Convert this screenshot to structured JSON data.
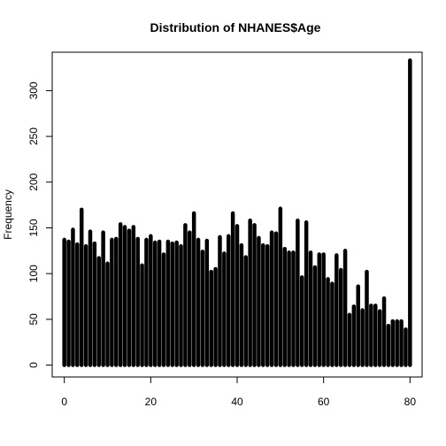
{
  "chart_data": {
    "type": "bar",
    "title": "Distribution of NHANES$Age",
    "xlabel": "",
    "ylabel": "Frequency",
    "x_ticks": [
      0,
      20,
      40,
      60,
      80
    ],
    "y_ticks": [
      0,
      50,
      100,
      150,
      200,
      250,
      300
    ],
    "xlim": [
      -2.8,
      82.8
    ],
    "ylim": [
      -13,
      342
    ],
    "bar_color": "#000000",
    "grid": false,
    "legend": "none",
    "x": [
      0,
      1,
      2,
      3,
      4,
      5,
      6,
      7,
      8,
      9,
      10,
      11,
      12,
      13,
      14,
      15,
      16,
      17,
      18,
      19,
      20,
      21,
      22,
      23,
      24,
      25,
      26,
      27,
      28,
      29,
      30,
      31,
      32,
      33,
      34,
      35,
      36,
      37,
      38,
      39,
      40,
      41,
      42,
      43,
      44,
      45,
      46,
      47,
      48,
      49,
      50,
      51,
      52,
      53,
      54,
      55,
      56,
      57,
      58,
      59,
      60,
      61,
      62,
      63,
      64,
      65,
      66,
      67,
      68,
      69,
      70,
      71,
      72,
      73,
      74,
      75,
      76,
      77,
      78,
      79,
      80
    ],
    "values": [
      137,
      135,
      148,
      132,
      170,
      130,
      146,
      133,
      117,
      145,
      111,
      137,
      138,
      154,
      151,
      147,
      151,
      138,
      109,
      137,
      141,
      134,
      135,
      121,
      135,
      133,
      134,
      130,
      153,
      145,
      166,
      137,
      124,
      136,
      102,
      105,
      140,
      122,
      141,
      166,
      152,
      131,
      118,
      158,
      153,
      139,
      131,
      130,
      145,
      144,
      171,
      127,
      123,
      123,
      158,
      96,
      156,
      123,
      107,
      121,
      121,
      94,
      89,
      120,
      104,
      125,
      55,
      64,
      86,
      60,
      102,
      65,
      65,
      59,
      73,
      43,
      48,
      48,
      48,
      39,
      333
    ]
  }
}
